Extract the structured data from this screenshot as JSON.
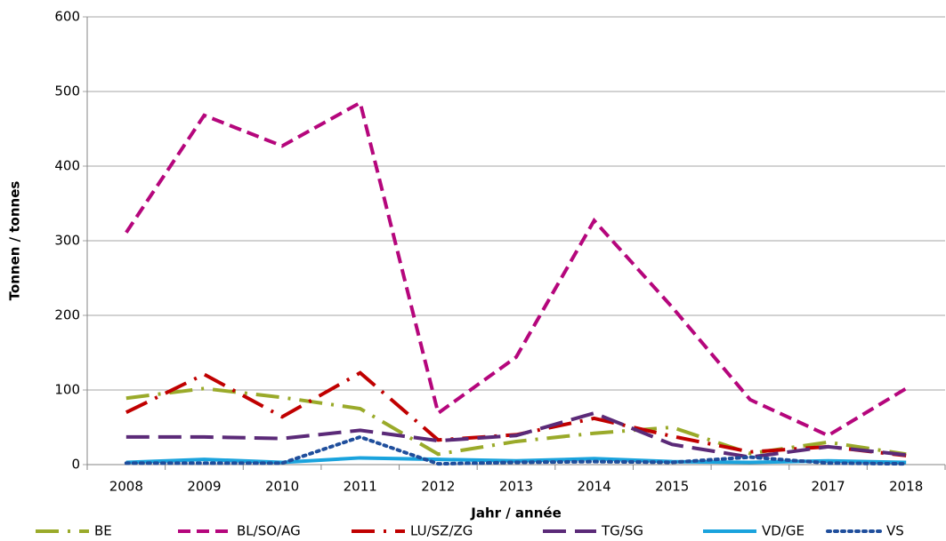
{
  "chart_data": {
    "type": "line",
    "x_label": "Jahr / année",
    "y_label": "Tonnen / tonnes",
    "categories": [
      "2008",
      "2009",
      "2010",
      "2011",
      "2012",
      "2013",
      "2014",
      "2015",
      "2016",
      "2017",
      "2018"
    ],
    "ylim": [
      0,
      600
    ],
    "yticks": [
      0,
      100,
      200,
      300,
      400,
      500,
      600
    ],
    "grid": true,
    "legend": "bottom",
    "series": [
      {
        "name": "BE",
        "color": "#9aaa2a",
        "dash": "long-dash-dot",
        "values": [
          89,
          102,
          90,
          75,
          14,
          31,
          42,
          50,
          15,
          30,
          14
        ]
      },
      {
        "name": "BL/SO/AG",
        "color": "#b5067c",
        "dash": "dash",
        "values": [
          311,
          468,
          427,
          485,
          69,
          144,
          327,
          211,
          87,
          39,
          102
        ]
      },
      {
        "name": "LU/SZ/ZG",
        "color": "#c00000",
        "dash": "long-dash-dot",
        "values": [
          70,
          121,
          64,
          123,
          33,
          40,
          62,
          38,
          17,
          24,
          12
        ]
      },
      {
        "name": "TG/SG",
        "color": "#5b2a78",
        "dash": "long-dash",
        "values": [
          37,
          37,
          35,
          46,
          32,
          39,
          69,
          27,
          10,
          24,
          13
        ]
      },
      {
        "name": "VD/GE",
        "color": "#1aa3dd",
        "dash": "solid",
        "values": [
          3,
          7,
          3,
          9,
          7,
          5,
          8,
          4,
          3,
          5,
          3
        ]
      },
      {
        "name": "VS",
        "color": "#1f4e9c",
        "dash": "dot",
        "values": [
          2,
          2,
          2,
          37,
          1,
          3,
          4,
          3,
          10,
          2,
          1
        ]
      }
    ]
  }
}
